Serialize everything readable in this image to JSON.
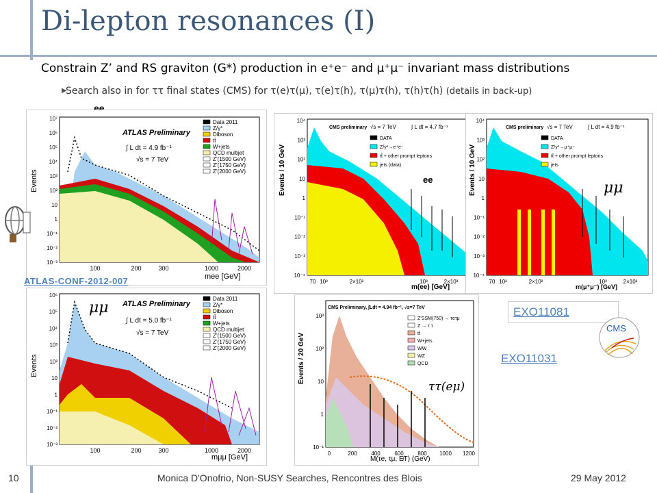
{
  "slide": {
    "title": "Di-lepton resonances (I)",
    "subtitle": "Constrain Z’ and RS graviton (G*) production in e⁺e⁻ and μ⁺μ⁻ invariant mass distributions",
    "bullet": "Search also in for ττ final states (CMS) for τ(e)τ(μ), τ(e)τ(h), τ(μ)τ(h), τ(h)τ(h)",
    "bullet_note": "(details in back-up)"
  },
  "labels": {
    "ee_top": "ee",
    "ee_cms": "ee",
    "mumu_cms": "μμ",
    "mumu_atlas": "μμ",
    "tautau": "ττ(eμ)"
  },
  "links": {
    "atlas_conf": "ATLAS-CONF-2012-007",
    "exo1": "EXO11081",
    "exo2": "EXO11031"
  },
  "footer": {
    "page": "10",
    "center": "Monica D'Onofrio, Non-SUSY Searches, Rencontres des Blois",
    "date": "29 May 2012"
  },
  "plots": {
    "atlas_ee": {
      "ylabel": "Events",
      "xlabel": "mee [GeV]",
      "header": "ATLAS Preliminary",
      "lumi": "∫ L dt = 4.9 fb⁻¹",
      "energy": "√s = 7 TeV",
      "yticks": [
        "10⁷",
        "10⁶",
        "10⁵",
        "10⁴",
        "10³",
        "10²",
        "10",
        "1",
        "10⁻¹",
        "10⁻²",
        "10⁻³"
      ],
      "xticks": [
        "100",
        "200",
        "300",
        "1000",
        "2000"
      ],
      "legend": [
        "Data 2011",
        "Z/γ*",
        "Diboson",
        "tt̄",
        "W+jets",
        "QCD multijet",
        "Z’(1500 GeV)",
        "Z’(1750 GeV)",
        "Z’(2000 GeV)"
      ]
    },
    "atlas_mumu": {
      "ylabel": "Events",
      "xlabel": "mμμ [GeV]",
      "header": "ATLAS Preliminary",
      "lumi": "∫ L dt = 5.0 fb⁻¹",
      "energy": "√s = 7 TeV",
      "yticks": [
        "10⁶",
        "10⁵",
        "10⁴",
        "10³",
        "10²",
        "10",
        "1",
        "10⁻¹",
        "10⁻²",
        "10⁻³"
      ],
      "xticks": [
        "100",
        "200",
        "300",
        "1000",
        "2000"
      ],
      "legend": [
        "Data 2011",
        "Z/γ*",
        "Diboson",
        "tt̄",
        "W+jets",
        "QCD multijet",
        "Z’(1500 GeV)",
        "Z’(1750 GeV)",
        "Z’(2000 GeV)"
      ]
    },
    "cms_ee": {
      "ylabel": "Events / 10 GeV",
      "xlabel": "m(ee) [GeV]",
      "header": "CMS preliminary",
      "energy": "√s = 7 TeV",
      "lumi": "∫ L dt = 4.7 fb⁻¹",
      "yticks": [
        "10⁴",
        "10³",
        "10²",
        "10",
        "1",
        "10⁻¹",
        "10⁻²",
        "10⁻³",
        "10⁻⁴"
      ],
      "xticks": [
        "70",
        "10²",
        "2×10²",
        "10³",
        "2×10³"
      ],
      "legend": [
        "DATA",
        "Z/γ*→e⁺e⁻",
        "tt̄ + other prompt leptons",
        "jets (data)"
      ]
    },
    "cms_mumu": {
      "ylabel": "Events / 10 GeV",
      "xlabel": "m(μ⁺μ⁻) [GeV]",
      "header": "CMS preliminary",
      "energy": "√s = 7 TeV",
      "lumi": "∫ L dt = 4.9 fb⁻¹",
      "yticks": [
        "10⁴",
        "10³",
        "10²",
        "10",
        "1",
        "10⁻¹",
        "10⁻²",
        "10⁻³",
        "10⁻⁴"
      ],
      "xticks": [
        "70",
        "10²",
        "2×10²",
        "10³",
        "2×10³"
      ],
      "legend": [
        "DATA",
        "Z/γ*→μ⁺μ⁻",
        "tt̄ + other prompt leptons",
        "jets"
      ]
    },
    "cms_tautau": {
      "ylabel": "Events / 20 GeV",
      "xlabel": "M(τe, τμ, E̸T) (GeV)",
      "header": "CMS Preliminary, ∫Ldt = 4.94 fb⁻¹, √s=7 TeV",
      "yticks": [
        "10³",
        "10²",
        "10",
        "1",
        "10⁻¹"
      ],
      "xticks": [
        "0",
        "200",
        "400",
        "600",
        "800",
        "1000",
        "1200"
      ],
      "legend": [
        "Z’SSM(750) → τeτμ",
        "Z → τ τ",
        "tt̄",
        "W+jets",
        "WW",
        "WZ",
        "QCD"
      ]
    }
  },
  "colors": {
    "title": "#3b5878",
    "rail": "#9aaec8",
    "link": "#4f81bd",
    "atlas_zgamma": "#a8d0f0",
    "atlas_ttbar": "#d01010",
    "atlas_qcd": "#f5f0b0",
    "atlas_diboson": "#f0d000",
    "atlas_wjets": "#20a020",
    "cms_dy": "#00e5ee",
    "cms_ttbar": "#ee0000",
    "cms_jets": "#f5f000"
  }
}
